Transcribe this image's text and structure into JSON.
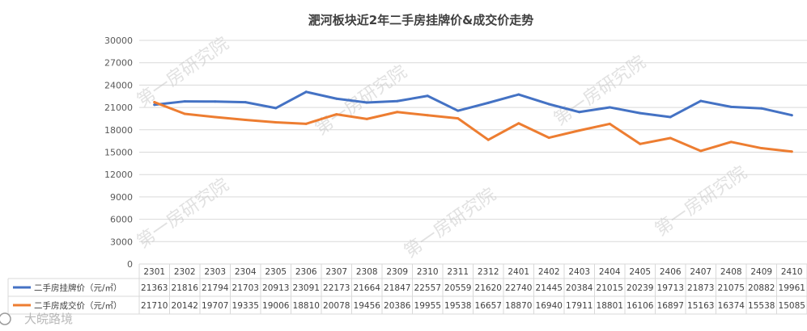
{
  "chart_data": {
    "type": "line",
    "title": "淝河板块近2年二手房挂牌价&成交价走势",
    "categories": [
      "2301",
      "2302",
      "2303",
      "2304",
      "2305",
      "2306",
      "2307",
      "2308",
      "2309",
      "2310",
      "2311",
      "2312",
      "2401",
      "2402",
      "2403",
      "2404",
      "2405",
      "2406",
      "2407",
      "2408",
      "2409",
      "2410"
    ],
    "series": [
      {
        "name": "二手房挂牌价（元/㎡）",
        "color": "#4472c4",
        "values": [
          21363,
          21816,
          21794,
          21703,
          20913,
          23091,
          22173,
          21664,
          21847,
          22557,
          20559,
          21620,
          22740,
          21445,
          20384,
          21015,
          20239,
          19713,
          21873,
          21075,
          20882,
          19961
        ]
      },
      {
        "name": "二手房成交价（元/㎡）",
        "color": "#ed7d31",
        "values": [
          21710,
          20142,
          19707,
          19335,
          19006,
          18810,
          20078,
          19456,
          20386,
          19955,
          19538,
          16657,
          18870,
          16940,
          17911,
          18801,
          16106,
          16897,
          15163,
          16374,
          15538,
          15085
        ]
      }
    ],
    "ylim": [
      0,
      30000
    ],
    "yticks": [
      0,
      3000,
      6000,
      9000,
      12000,
      15000,
      18000,
      21000,
      24000,
      27000,
      30000
    ],
    "grid": true,
    "legend": "data-table"
  },
  "watermark": {
    "text": "第一房研究院"
  },
  "footer": {
    "logo_text": "大皖路境"
  }
}
